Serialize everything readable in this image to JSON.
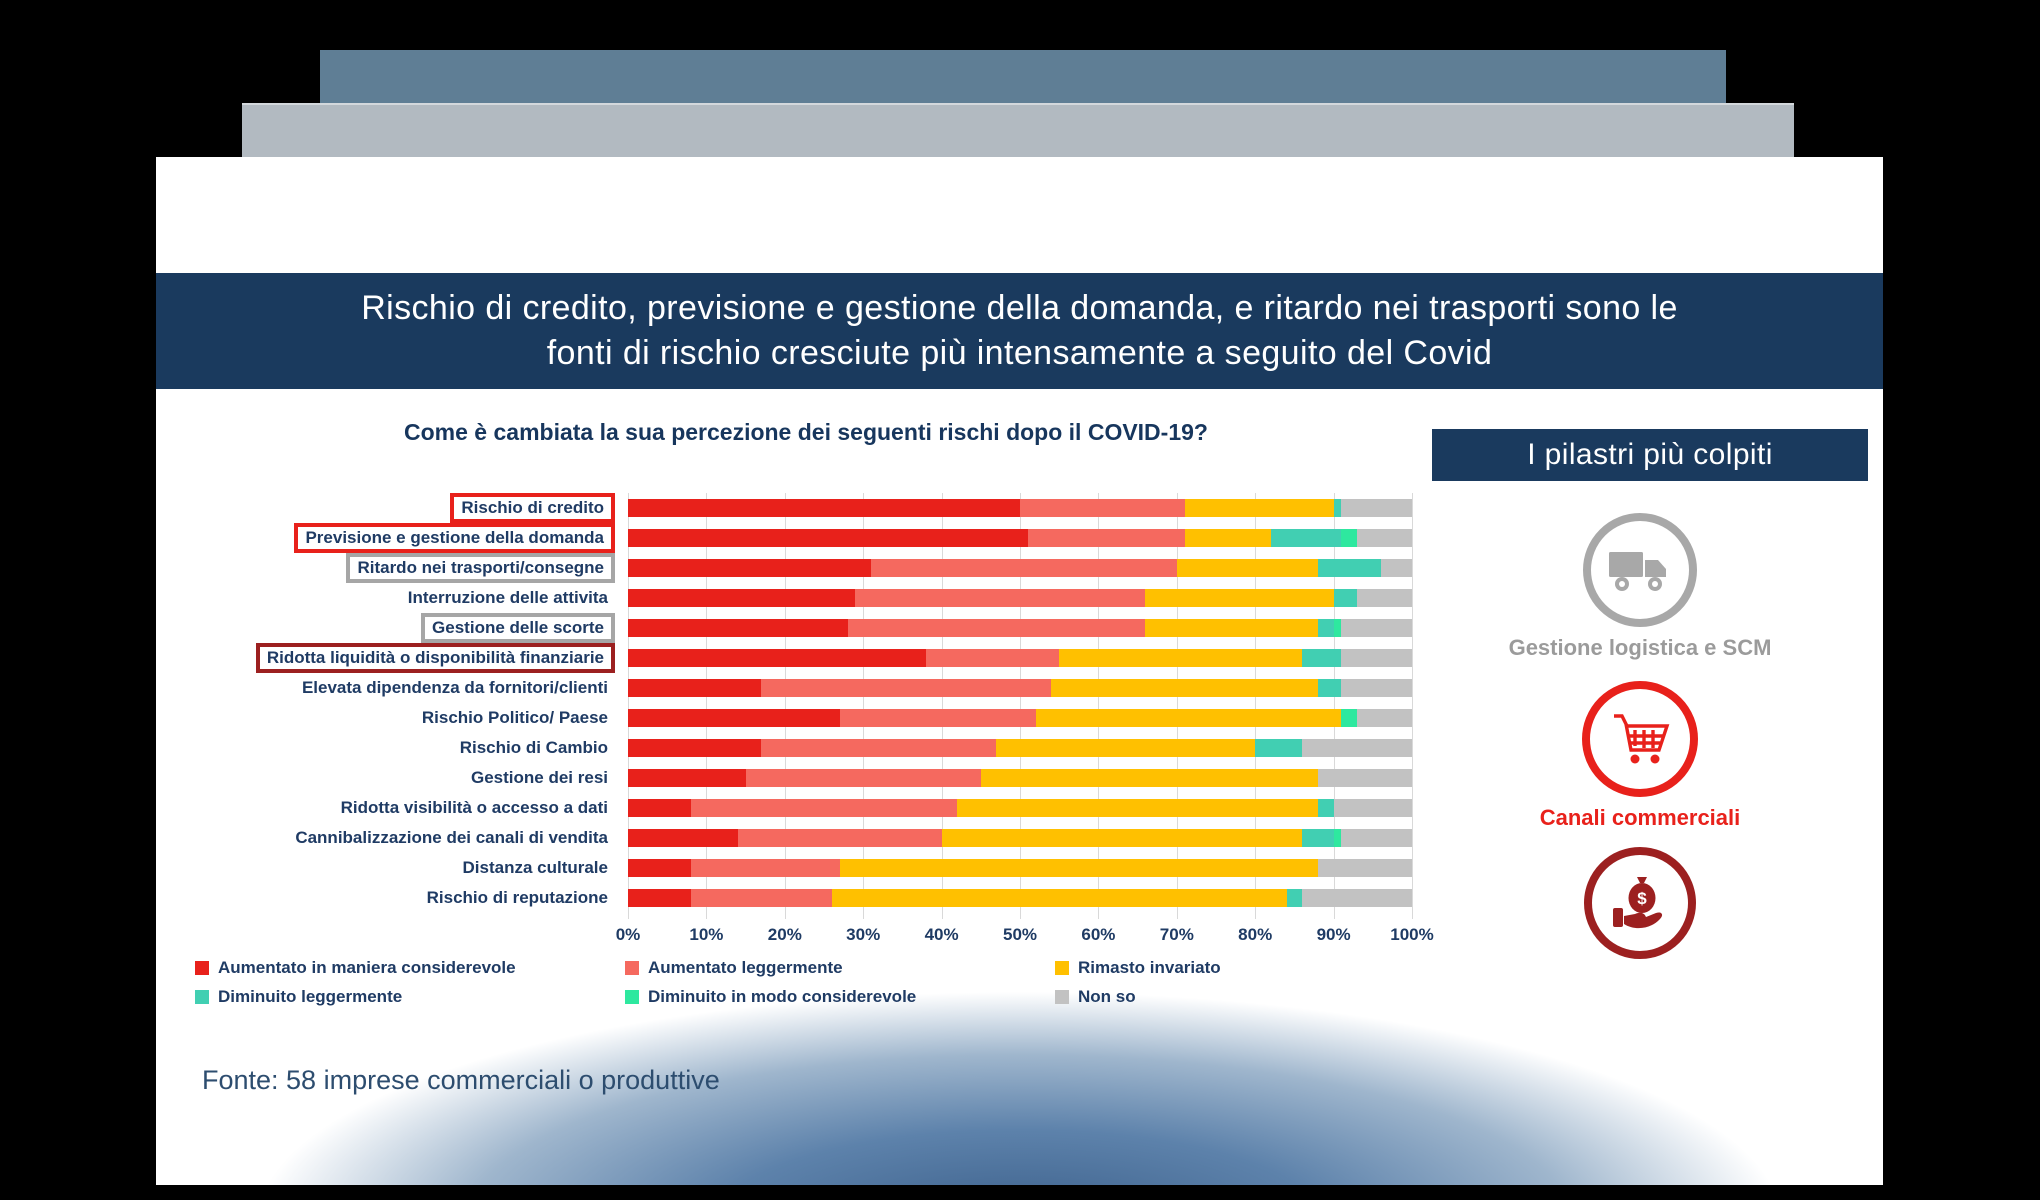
{
  "banner": {
    "title_line1": "Rischio di credito, previsione e gestione della domanda,  e ritardo nei trasporti sono le",
    "title_line2": "fonti di rischio cresciute più intensamente a seguito del Covid"
  },
  "chart_title": "Come è cambiata la sua percezione dei seguenti rischi dopo il COVID-19?",
  "chart_data": {
    "type": "bar",
    "orientation": "horizontal-stacked",
    "unit": "percent",
    "xlim": [
      0,
      100
    ],
    "grid": true,
    "legend_position": "bottom",
    "x_ticks": [
      "0%",
      "10%",
      "20%",
      "30%",
      "40%",
      "50%",
      "60%",
      "70%",
      "80%",
      "90%",
      "100%"
    ],
    "categories": [
      "Rischio di credito",
      "Previsione e gestione della domanda",
      "Ritardo nei trasporti/consegne",
      "Interruzione delle attivita",
      "Gestione delle scorte",
      "Ridotta liquidità o disponibilità finanziarie",
      "Elevata dipendenza da fornitori/clienti",
      "Rischio Politico/ Paese",
      "Rischio di Cambio",
      "Gestione dei resi",
      "Ridotta visibilità o accesso a dati",
      "Cannibalizzazione dei canali di vendita",
      "Distanza culturale",
      "Rischio di reputazione"
    ],
    "category_boxes": [
      "red",
      "red",
      "gray",
      null,
      "gray",
      "darkred",
      null,
      null,
      null,
      null,
      null,
      null,
      null,
      null
    ],
    "series": [
      {
        "name": "Aumentato in maniera considerevole",
        "color": "#e8211b",
        "values": [
          50,
          51,
          31,
          29,
          28,
          38,
          17,
          27,
          17,
          15,
          8,
          14,
          8,
          8
        ]
      },
      {
        "name": "Aumentato leggermente",
        "color": "#f5695f",
        "values": [
          21,
          20,
          39,
          37,
          38,
          17,
          37,
          25,
          30,
          30,
          34,
          26,
          19,
          18
        ]
      },
      {
        "name": "Rimasto invariato",
        "color": "#ffc000",
        "values": [
          19,
          11,
          18,
          24,
          22,
          31,
          34,
          39,
          33,
          43,
          46,
          46,
          61,
          58
        ]
      },
      {
        "name": "Diminuito leggermente",
        "color": "#41cfb2",
        "values": [
          1,
          9,
          8,
          3,
          2,
          5,
          3,
          0,
          6,
          0,
          2,
          4,
          0,
          2
        ]
      },
      {
        "name": "Diminuito in modo considerevole",
        "color": "#2ee89f",
        "values": [
          0,
          2,
          0,
          0,
          1,
          0,
          0,
          2,
          0,
          0,
          0,
          1,
          0,
          0
        ]
      },
      {
        "name": "Non so",
        "color": "#c2c2c2",
        "pattern": "dots",
        "values": [
          9,
          7,
          4,
          7,
          9,
          9,
          9,
          7,
          14,
          12,
          10,
          9,
          12,
          14
        ]
      }
    ]
  },
  "sidebar": {
    "title": "I pilastri più colpiti",
    "items": [
      {
        "icon": "truck-icon",
        "label": "Gestione logistica e SCM",
        "color": "#a8a8a8"
      },
      {
        "icon": "shopping-cart-icon",
        "label": "Canali commerciali",
        "color": "#e8211b"
      },
      {
        "icon": "money-bag-hand-icon",
        "label": "",
        "color": "#9c2020"
      }
    ]
  },
  "footer": {
    "source": "Fonte: 58 imprese commerciali o produttive"
  }
}
